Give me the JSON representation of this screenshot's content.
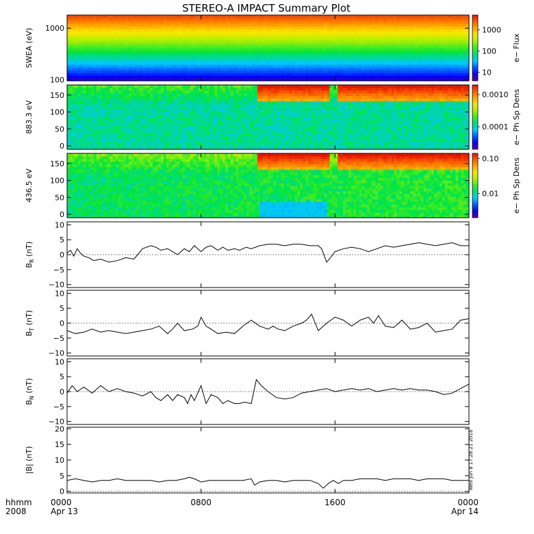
{
  "title": "STEREO-A IMPACT Summary Plot",
  "timestamp": "Wed Jun 8 17:28:21 2016",
  "time_axis": {
    "label_line1": "hhmm",
    "label_line2": "2008",
    "ticks": [
      {
        "hour": 0,
        "label": "0000",
        "date": "Apr 13"
      },
      {
        "hour": 8,
        "label": "0800",
        "date": ""
      },
      {
        "hour": 16,
        "label": "1600",
        "date": ""
      },
      {
        "hour": 24,
        "label": "0000",
        "date": "Apr 14"
      }
    ]
  },
  "chart_data": [
    {
      "type": "heatmap",
      "ylabel": "SWEA (eV)",
      "ylim": [
        95,
        1800
      ],
      "yscale": "log",
      "yticks": [
        {
          "v": 100,
          "label": "100"
        },
        {
          "v": 1000,
          "label": "1000"
        }
      ],
      "colorbar": {
        "label": "e− Flux",
        "scale": "log",
        "range": [
          4,
          5000
        ],
        "ticks": [
          {
            "v": 10,
            "label": "10"
          },
          {
            "v": 100,
            "label": "100"
          },
          {
            "v": 1000,
            "label": "1000"
          }
        ]
      }
    },
    {
      "type": "heatmap",
      "ylabel": "883.3 eV",
      "ylim": [
        -10,
        180
      ],
      "yticks": [
        {
          "v": 0,
          "label": "0"
        },
        {
          "v": 50,
          "label": "50"
        },
        {
          "v": 100,
          "label": "100"
        },
        {
          "v": 150,
          "label": "150"
        }
      ],
      "colorbar": {
        "label": "e− Ph Sp Dens",
        "scale": "log",
        "range": [
          2e-05,
          0.002
        ],
        "ticks": [
          {
            "v": 0.0001,
            "label": "0.0001"
          },
          {
            "v": 0.001,
            "label": "0.0010"
          }
        ]
      }
    },
    {
      "type": "heatmap",
      "ylabel": "436.5 eV",
      "ylim": [
        -10,
        180
      ],
      "yticks": [
        {
          "v": 0,
          "label": "0"
        },
        {
          "v": 50,
          "label": "50"
        },
        {
          "v": 100,
          "label": "100"
        },
        {
          "v": 150,
          "label": "150"
        }
      ],
      "colorbar": {
        "label": "e− Ph Sp Dens",
        "scale": "log",
        "range": [
          0.002,
          0.14
        ],
        "ticks": [
          {
            "v": 0.01,
            "label": "0.01"
          },
          {
            "v": 0.1,
            "label": "0.10"
          }
        ]
      }
    },
    {
      "type": "line",
      "ylabel": "B_R (nT)",
      "ylabel_main": "B",
      "ylabel_sub": "R",
      "ylabel_unit": " (nT)",
      "ylim": [
        -11,
        11
      ],
      "yticks": [
        {
          "v": -10,
          "label": "−10"
        },
        {
          "v": -5,
          "label": "−5"
        },
        {
          "v": 0,
          "label": "0"
        },
        {
          "v": 5,
          "label": "5"
        },
        {
          "v": 10,
          "label": "10"
        }
      ],
      "x": [
        0,
        0.2,
        0.4,
        0.6,
        0.8,
        1.0,
        1.3,
        1.6,
        2,
        2.5,
        3,
        3.5,
        4,
        4.5,
        5,
        5.3,
        5.6,
        6,
        6.3,
        6.6,
        7,
        7.3,
        7.6,
        8,
        8.3,
        8.6,
        9,
        9.3,
        9.6,
        10,
        10.3,
        10.7,
        11,
        11.5,
        12,
        12.5,
        13,
        13.5,
        14,
        14.5,
        15,
        15.2,
        15.5,
        15.8,
        16,
        16.5,
        17,
        17.5,
        18,
        18.5,
        19,
        19.5,
        20,
        20.5,
        21,
        21.5,
        22,
        22.5,
        23,
        23.5,
        24
      ],
      "y": [
        0.5,
        1.5,
        -0.5,
        2,
        0.5,
        -0.5,
        -1,
        -2,
        -1.5,
        -2.5,
        -2,
        -1,
        -1.5,
        2,
        3,
        2.5,
        1.5,
        2,
        1,
        0,
        2,
        1,
        3,
        1,
        2.5,
        3,
        1.5,
        2.5,
        1.5,
        2,
        1.5,
        2.5,
        2,
        3,
        3.5,
        3.5,
        3,
        3.5,
        3.5,
        3,
        3,
        2,
        -2.5,
        -0.5,
        1,
        2,
        2.5,
        2,
        1,
        2,
        3,
        2.5,
        3,
        3.5,
        4,
        3.5,
        3,
        3.5,
        4,
        3,
        3
      ]
    },
    {
      "type": "line",
      "ylabel": "B_T (nT)",
      "ylabel_main": "B",
      "ylabel_sub": "T",
      "ylabel_unit": " (nT)",
      "ylim": [
        -11,
        11
      ],
      "yticks": [
        {
          "v": -10,
          "label": "−10"
        },
        {
          "v": -5,
          "label": "−5"
        },
        {
          "v": 0,
          "label": "0"
        },
        {
          "v": 5,
          "label": "5"
        },
        {
          "v": 10,
          "label": "10"
        }
      ],
      "x": [
        0,
        0.5,
        1,
        1.5,
        2,
        2.5,
        3,
        3.5,
        4,
        4.5,
        5,
        5.5,
        6,
        6.3,
        6.6,
        7,
        7.5,
        7.8,
        8.0,
        8.3,
        8.6,
        9,
        9.5,
        10,
        10.5,
        11,
        11.5,
        12,
        12.3,
        12.6,
        13,
        13.5,
        14,
        14.3,
        14.6,
        15,
        15.5,
        16,
        16.5,
        17,
        17.5,
        18,
        18.3,
        18.6,
        19,
        19.5,
        20,
        20.5,
        21,
        21.5,
        22,
        22.5,
        23,
        23.5,
        24
      ],
      "y": [
        -2.5,
        -3.5,
        -3,
        -2,
        -3,
        -2.5,
        -3,
        -3.5,
        -3,
        -2.5,
        -2,
        -1,
        -3.5,
        -2,
        0,
        -2.5,
        -2,
        -1,
        2,
        -1,
        -2,
        -3.5,
        -3,
        -3.5,
        -1,
        1,
        -1,
        -2,
        -1,
        -2,
        -2.5,
        -1,
        0,
        1,
        3,
        -2.5,
        0,
        2,
        1,
        -1,
        1,
        2,
        0,
        2.5,
        -1,
        -1.5,
        1,
        -2,
        -1.5,
        0,
        -3,
        -2.5,
        -2,
        1,
        1.5
      ]
    },
    {
      "type": "line",
      "ylabel": "B_N (nT)",
      "ylabel_main": "B",
      "ylabel_sub": "N",
      "ylabel_unit": " (nT)",
      "ylim": [
        -11,
        11
      ],
      "yticks": [
        {
          "v": -10,
          "label": "−10"
        },
        {
          "v": -5,
          "label": "−5"
        },
        {
          "v": 0,
          "label": "0"
        },
        {
          "v": 5,
          "label": "5"
        },
        {
          "v": 10,
          "label": "10"
        }
      ],
      "x": [
        0,
        0.3,
        0.6,
        1,
        1.5,
        2,
        2.5,
        3,
        3.5,
        4,
        4.5,
        5,
        5.3,
        5.6,
        6,
        6.3,
        6.6,
        7,
        7.2,
        7.4,
        7.6,
        8,
        8.3,
        8.6,
        9,
        9.3,
        9.6,
        10,
        10.3,
        10.6,
        11,
        11.3,
        11.6,
        12,
        12.5,
        13,
        13.5,
        14,
        14.5,
        15,
        15.5,
        16,
        16.5,
        17,
        17.5,
        18,
        18.5,
        19,
        19.5,
        20,
        20.5,
        21,
        21.5,
        22,
        22.5,
        23,
        23.5,
        24
      ],
      "y": [
        -0.5,
        2,
        0,
        1.5,
        -0.5,
        2,
        0,
        1,
        0,
        -0.5,
        -1.5,
        0,
        -2,
        -3,
        -1,
        -3,
        -1,
        -2,
        -4,
        -1,
        -3,
        2,
        -4,
        -1,
        -2,
        -4,
        -3,
        -4,
        -4,
        -3.5,
        -4,
        4,
        2,
        0,
        -2,
        -2.5,
        -2,
        -0.5,
        0,
        0.5,
        1,
        0,
        0.5,
        1,
        0.5,
        1,
        0,
        0.5,
        1,
        0.5,
        1,
        0.5,
        0.5,
        0,
        -1,
        -0.5,
        1,
        2.5
      ]
    },
    {
      "type": "line",
      "ylabel": "|B| (nT)",
      "ylim": [
        -0.5,
        20.5
      ],
      "yticks": [
        {
          "v": 0,
          "label": "0"
        },
        {
          "v": 5,
          "label": "5"
        },
        {
          "v": 10,
          "label": "10"
        },
        {
          "v": 15,
          "label": "15"
        },
        {
          "v": 20,
          "label": "20"
        }
      ],
      "x": [
        0,
        0.5,
        1,
        1.5,
        2,
        2.5,
        3,
        3.5,
        4,
        4.5,
        5,
        5.5,
        6,
        6.5,
        7,
        7.3,
        7.6,
        8,
        8.5,
        9,
        9.5,
        10,
        10.5,
        11,
        11.2,
        11.5,
        12,
        12.5,
        13,
        13.5,
        14,
        14.5,
        15,
        15.3,
        15.6,
        15.9,
        16.2,
        16.5,
        17,
        17.5,
        18,
        18.5,
        19,
        19.5,
        20,
        20.5,
        21,
        21.5,
        22,
        22.5,
        23,
        23.5,
        24
      ],
      "y": [
        3.5,
        4,
        3.5,
        3,
        3.5,
        3.5,
        4,
        3.5,
        3.5,
        3.5,
        3.5,
        3,
        3.5,
        3.5,
        4,
        4.5,
        4,
        3,
        3.5,
        3.5,
        3.5,
        3.5,
        3.5,
        4,
        2,
        3,
        3.5,
        3.5,
        3,
        3.5,
        3.5,
        3.5,
        2.5,
        1,
        2.5,
        3.5,
        2.5,
        3.5,
        3.5,
        4,
        4,
        4,
        3.5,
        4,
        4,
        4,
        3.5,
        4,
        4,
        4,
        3.5,
        3.5,
        3.5
      ]
    }
  ]
}
